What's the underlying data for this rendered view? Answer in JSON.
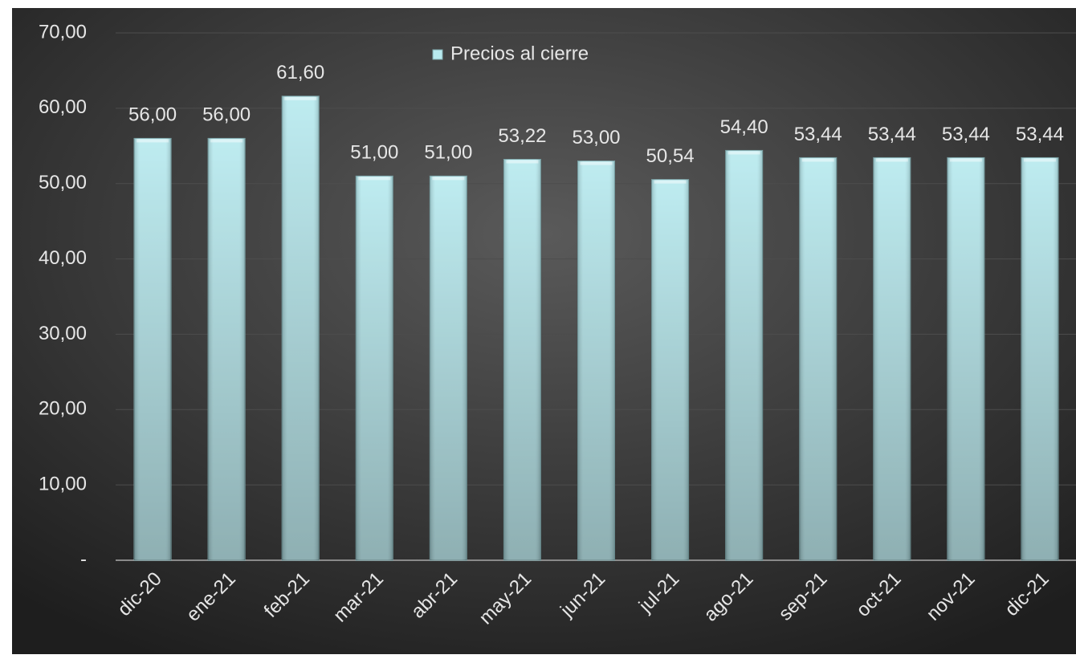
{
  "chart_data": {
    "type": "bar",
    "categories": [
      "dic-20",
      "ene-21",
      "feb-21",
      "mar-21",
      "abr-21",
      "may-21",
      "jun-21",
      "jul-21",
      "ago-21",
      "sep-21",
      "oct-21",
      "nov-21",
      "dic-21"
    ],
    "series": [
      {
        "name": "Precios al cierre",
        "color": "#b8eaef",
        "values": [
          56.0,
          56.0,
          61.6,
          51.0,
          51.0,
          53.22,
          53.0,
          50.54,
          54.4,
          53.44,
          53.44,
          53.44,
          53.44
        ],
        "value_labels": [
          "56,00",
          "56,00",
          "61,60",
          "51,00",
          "51,00",
          "53,22",
          "53,00",
          "50,54",
          "54,40",
          "53,44",
          "53,44",
          "53,44",
          "53,44"
        ]
      }
    ],
    "ylim": [
      0,
      70
    ],
    "yticks": [
      {
        "value": 0,
        "label": "-"
      },
      {
        "value": 10,
        "label": "10,00"
      },
      {
        "value": 20,
        "label": "20,00"
      },
      {
        "value": 30,
        "label": "30,00"
      },
      {
        "value": 40,
        "label": "40,00"
      },
      {
        "value": 50,
        "label": "50,00"
      },
      {
        "value": 60,
        "label": "60,00"
      },
      {
        "value": 70,
        "label": "70,00"
      }
    ],
    "grid": true,
    "legend": "top"
  }
}
